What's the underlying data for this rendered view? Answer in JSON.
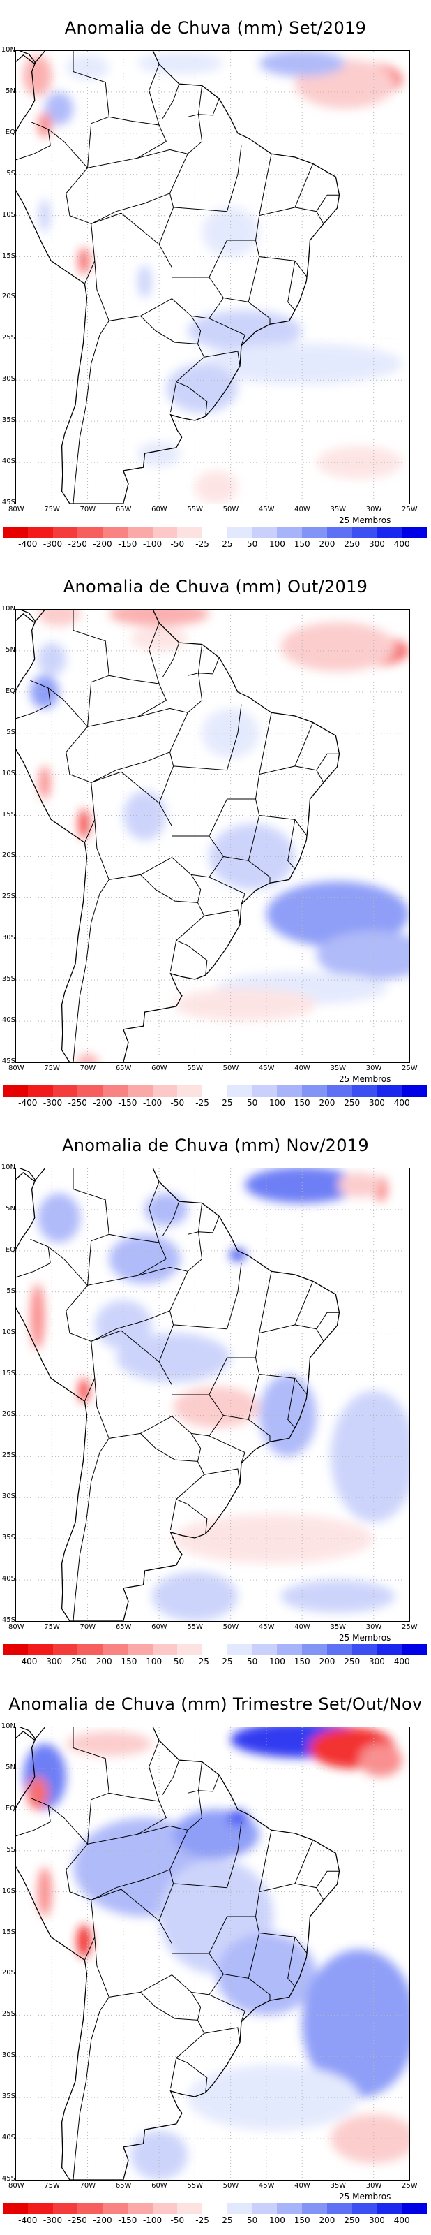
{
  "panels": [
    {
      "title": "Anomalia de Chuva (mm) Set/2019",
      "members": "25 Membros"
    },
    {
      "title": "Anomalia de Chuva (mm) Out/2019",
      "members": "25 Membros"
    },
    {
      "title": "Anomalia de Chuva (mm) Nov/2019",
      "members": "25 Membros"
    },
    {
      "title": "Anomalia de Chuva (mm) Trimestre Set/Out/Nov",
      "members": "25 Membros"
    }
  ],
  "lat_labels": [
    "10N",
    "5N",
    "EQ",
    "5S",
    "10S",
    "15S",
    "20S",
    "25S",
    "30S",
    "35S",
    "40S",
    "45S"
  ],
  "lon_labels": [
    "80W",
    "75W",
    "70W",
    "65W",
    "60W",
    "55W",
    "50W",
    "45W",
    "40W",
    "35W",
    "30W",
    "25W"
  ],
  "colorbar": {
    "labels": [
      "-400",
      "-300",
      "-250",
      "-200",
      "-150",
      "-100",
      "-50",
      "-25",
      "25",
      "50",
      "100",
      "150",
      "200",
      "250",
      "300",
      "400"
    ],
    "colors": [
      "#e60000",
      "#f21a1a",
      "#f53c3c",
      "#f75e5e",
      "#f98383",
      "#fba8a8",
      "#fcc8c8",
      "#fde2e2",
      "#ffffff",
      "#e2e8fd",
      "#c8d0fb",
      "#a8b4f9",
      "#8394f7",
      "#5e71f4",
      "#3c4ff2",
      "#1a28ef",
      "#0000e6"
    ]
  }
}
